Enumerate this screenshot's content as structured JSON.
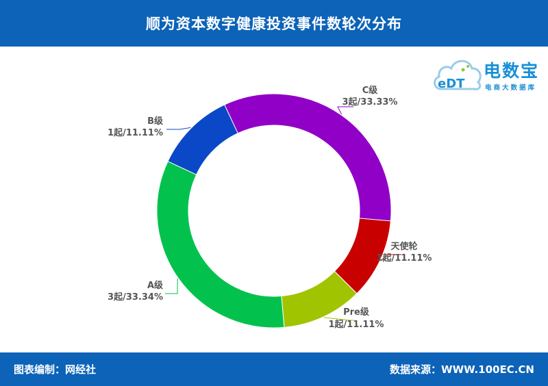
{
  "header": {
    "title": "顺为资本数字健康投资事件数轮次分布"
  },
  "footer": {
    "left": "图表编制：网经社",
    "right": "数据来源：WWW.100EC.CN"
  },
  "logo": {
    "icon_text": "eDT",
    "name": "电数宝",
    "sub": "电商大数据库"
  },
  "chart_data": {
    "type": "pie",
    "title": "顺为资本数字健康投资事件数轮次分布",
    "unit": "起",
    "slices": [
      {
        "name": "C级",
        "value": 3,
        "percent": "33.33%",
        "label": "3起/33.33%",
        "color": "#9100c7"
      },
      {
        "name": "天使轮",
        "value": 1,
        "percent": "11.11%",
        "label": "1起/11.11%",
        "color": "#c90000"
      },
      {
        "name": "Pre级",
        "value": 1,
        "percent": "11.11%",
        "label": "1起/11.11%",
        "color": "#a1c400"
      },
      {
        "name": "A级",
        "value": 3,
        "percent": "33.34%",
        "label": "3起/33.34%",
        "color": "#02c24d"
      },
      {
        "name": "B级",
        "value": 1,
        "percent": "11.11%",
        "label": "1起/11.11%",
        "color": "#0a48c7"
      }
    ]
  }
}
